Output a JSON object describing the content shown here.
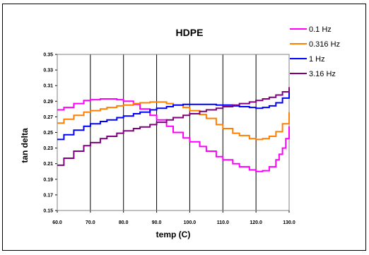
{
  "chart_data": {
    "type": "line",
    "title": "HDPE",
    "xlabel": "temp (C)",
    "ylabel": "tan delta",
    "xlim": [
      60,
      130
    ],
    "ylim": [
      0.15,
      0.35
    ],
    "xticks": [
      "60.0",
      "70.0",
      "80.0",
      "90.0",
      "100.0",
      "110.0",
      "120.0",
      "130.0"
    ],
    "yticks": [
      "0.15",
      "0.17",
      "0.19",
      "0.21",
      "0.23",
      "0.25",
      "0.27",
      "0.29",
      "0.31",
      "0.33",
      "0.35"
    ],
    "grid": "vertical",
    "legend_position": "right",
    "series": [
      {
        "name": "0.1 Hz",
        "color": "#ff00ff",
        "x": [
          60,
          62,
          65,
          68,
          70,
          73,
          75,
          78,
          80,
          83,
          85,
          88,
          90,
          93,
          95,
          98,
          100,
          103,
          105,
          108,
          110,
          113,
          115,
          118,
          120,
          122,
          124,
          126,
          127,
          128,
          129,
          130
        ],
        "y": [
          0.279,
          0.282,
          0.287,
          0.291,
          0.292,
          0.293,
          0.293,
          0.292,
          0.29,
          0.286,
          0.28,
          0.272,
          0.266,
          0.258,
          0.25,
          0.243,
          0.238,
          0.232,
          0.226,
          0.219,
          0.215,
          0.21,
          0.206,
          0.202,
          0.2,
          0.201,
          0.206,
          0.215,
          0.222,
          0.23,
          0.242,
          0.258
        ]
      },
      {
        "name": "0.316 Hz",
        "color": "#ff8000",
        "x": [
          60,
          62,
          65,
          68,
          70,
          73,
          75,
          78,
          80,
          83,
          85,
          88,
          90,
          93,
          95,
          98,
          100,
          103,
          105,
          108,
          110,
          113,
          115,
          118,
          120,
          122,
          124,
          126,
          128,
          130
        ],
        "y": [
          0.262,
          0.267,
          0.272,
          0.276,
          0.278,
          0.28,
          0.282,
          0.284,
          0.285,
          0.287,
          0.288,
          0.289,
          0.289,
          0.287,
          0.285,
          0.282,
          0.278,
          0.273,
          0.268,
          0.26,
          0.255,
          0.249,
          0.246,
          0.242,
          0.241,
          0.242,
          0.245,
          0.251,
          0.261,
          0.276
        ]
      },
      {
        "name": "1 Hz",
        "color": "#0000ff",
        "x": [
          60,
          62,
          65,
          68,
          70,
          73,
          75,
          78,
          80,
          83,
          85,
          88,
          90,
          93,
          95,
          98,
          100,
          103,
          105,
          108,
          110,
          113,
          115,
          118,
          120,
          122,
          124,
          126,
          128,
          130
        ],
        "y": [
          0.241,
          0.247,
          0.253,
          0.258,
          0.261,
          0.264,
          0.266,
          0.269,
          0.271,
          0.274,
          0.276,
          0.279,
          0.281,
          0.283,
          0.285,
          0.286,
          0.286,
          0.286,
          0.286,
          0.285,
          0.285,
          0.284,
          0.283,
          0.282,
          0.281,
          0.282,
          0.284,
          0.288,
          0.294,
          0.303
        ]
      },
      {
        "name": "3.16 Hz",
        "color": "#800080",
        "x": [
          60,
          62,
          65,
          68,
          70,
          73,
          75,
          78,
          80,
          83,
          85,
          88,
          90,
          93,
          95,
          98,
          100,
          103,
          105,
          108,
          110,
          113,
          115,
          118,
          120,
          122,
          124,
          126,
          128,
          130
        ],
        "y": [
          0.208,
          0.217,
          0.226,
          0.233,
          0.237,
          0.242,
          0.245,
          0.249,
          0.252,
          0.255,
          0.257,
          0.26,
          0.263,
          0.266,
          0.269,
          0.272,
          0.274,
          0.277,
          0.279,
          0.281,
          0.283,
          0.285,
          0.287,
          0.289,
          0.291,
          0.293,
          0.295,
          0.298,
          0.302,
          0.308
        ]
      }
    ]
  }
}
